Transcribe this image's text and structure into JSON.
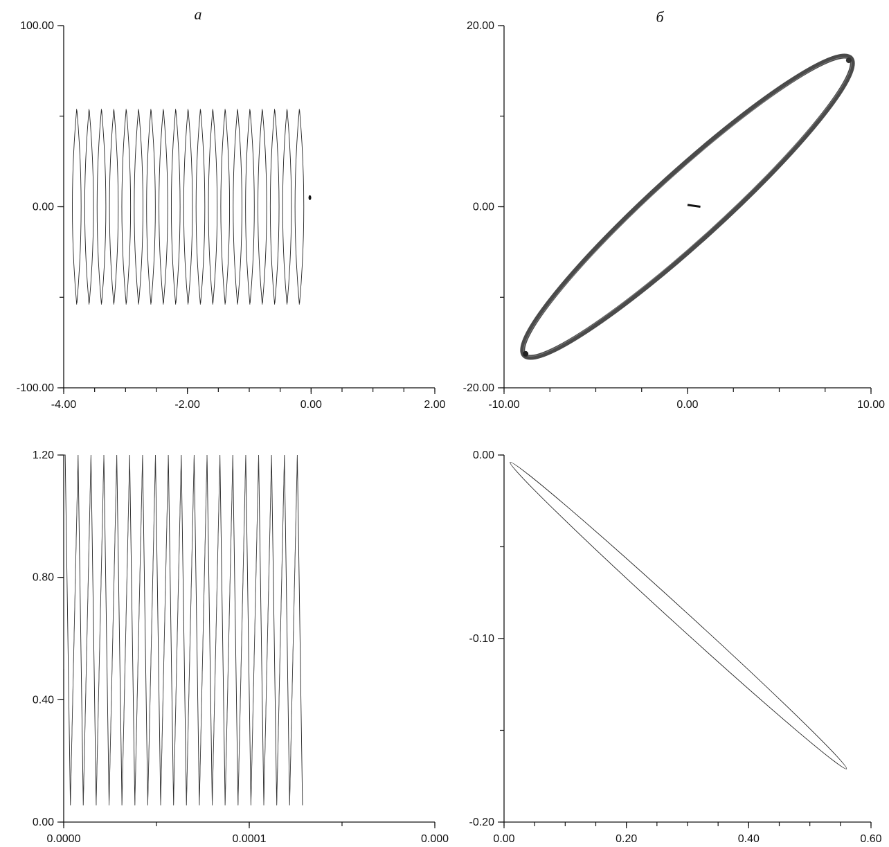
{
  "figure": {
    "panels": [
      "a",
      "б"
    ]
  },
  "chart_data": [
    {
      "id": "top-left",
      "label": "a",
      "type": "line",
      "xlim": [
        -4.0,
        2.0
      ],
      "ylim": [
        -100.0,
        100.0
      ],
      "x_tick_labels": [
        {
          "value": -4.0,
          "text": "-4.00"
        },
        {
          "value": -2.0,
          "text": "-2.00"
        },
        {
          "value": 0.0,
          "text": "0.00"
        },
        {
          "value": 2.0,
          "text": "2.00"
        }
      ],
      "y_tick_labels": [
        {
          "value": 100.0,
          "text": "100.00"
        },
        {
          "value": 0.0,
          "text": "0.00"
        },
        {
          "value": -100.0,
          "text": "-100.00"
        }
      ],
      "x_minor_step": 0.5,
      "y_minor_step": 50,
      "arc_centers_x": [
        -3.79,
        -3.59,
        -3.39,
        -3.19,
        -2.99,
        -2.79,
        -2.59,
        -2.39,
        -2.19,
        -1.99,
        -1.79,
        -1.59,
        -1.39,
        -1.19,
        -0.99,
        -0.79,
        -0.59,
        -0.39,
        -0.19
      ],
      "arc_amplitude_y": 54,
      "arc_bulge_x": 0.07,
      "marker": {
        "x": -0.02,
        "y": 5
      }
    },
    {
      "id": "top-right",
      "label": "б",
      "type": "line",
      "xlim": [
        -10.0,
        10.0
      ],
      "ylim": [
        -20.0,
        20.0
      ],
      "x_tick_labels": [
        {
          "value": -10.0,
          "text": "-10.00"
        },
        {
          "value": 0.0,
          "text": "0.00"
        },
        {
          "value": 10.0,
          "text": "10.00"
        }
      ],
      "y_tick_labels": [
        {
          "value": 20.0,
          "text": "20.00"
        },
        {
          "value": 0.0,
          "text": "0.00"
        },
        {
          "value": -20.0,
          "text": "-20.00"
        }
      ],
      "x_minor_step": 2.5,
      "y_minor_step": 10,
      "ellipse": {
        "cx": 0.0,
        "cy": 0.0,
        "x_extent": 8.9,
        "y_extent": 16.4,
        "half_width_x": 0.55
      },
      "segment": [
        {
          "x": 0.0,
          "y": 0.2
        },
        {
          "x": 0.7,
          "y": 0.0
        }
      ]
    },
    {
      "id": "bottom-left",
      "label": "",
      "type": "line",
      "xlim": [
        0.0,
        0.0002
      ],
      "ylim": [
        0.0,
        1.2
      ],
      "x_tick_labels": [
        {
          "value": 0.0,
          "text": "0.0000"
        },
        {
          "value": 0.0001,
          "text": "0.0001"
        },
        {
          "value": 0.0002,
          "text": "0.000"
        }
      ],
      "y_tick_labels": [
        {
          "value": 1.2,
          "text": "1.20"
        },
        {
          "value": 0.8,
          "text": "0.80"
        },
        {
          "value": 0.4,
          "text": "0.40"
        },
        {
          "value": 0.0,
          "text": "0.00"
        }
      ],
      "x_minor_step": 5e-05,
      "y_minor_step": 0.4,
      "sawtooth": {
        "start_x": 8e-07,
        "period_x": 6.95e-06,
        "ramp_dx": 2.8e-06,
        "peaks": 19,
        "y_low": 0.055,
        "y_high": 1.2
      }
    },
    {
      "id": "bottom-right",
      "label": "",
      "type": "line",
      "xlim": [
        0.0,
        0.6
      ],
      "ylim": [
        -0.2,
        0.0
      ],
      "x_tick_labels": [
        {
          "value": 0.0,
          "text": "0.00"
        },
        {
          "value": 0.2,
          "text": "0.20"
        },
        {
          "value": 0.4,
          "text": "0.40"
        },
        {
          "value": 0.6,
          "text": "0.60"
        }
      ],
      "y_tick_labels": [
        {
          "value": 0.0,
          "text": "0.00"
        },
        {
          "value": -0.1,
          "text": "-0.10"
        },
        {
          "value": -0.2,
          "text": "-0.20"
        }
      ],
      "x_minor_step": 0.05,
      "y_minor_step": 0.05,
      "ellipse": {
        "start": {
          "x": 0.01,
          "y": -0.004
        },
        "end": {
          "x": 0.56,
          "y": -0.171
        },
        "half_width_y": 0.0042
      }
    }
  ]
}
